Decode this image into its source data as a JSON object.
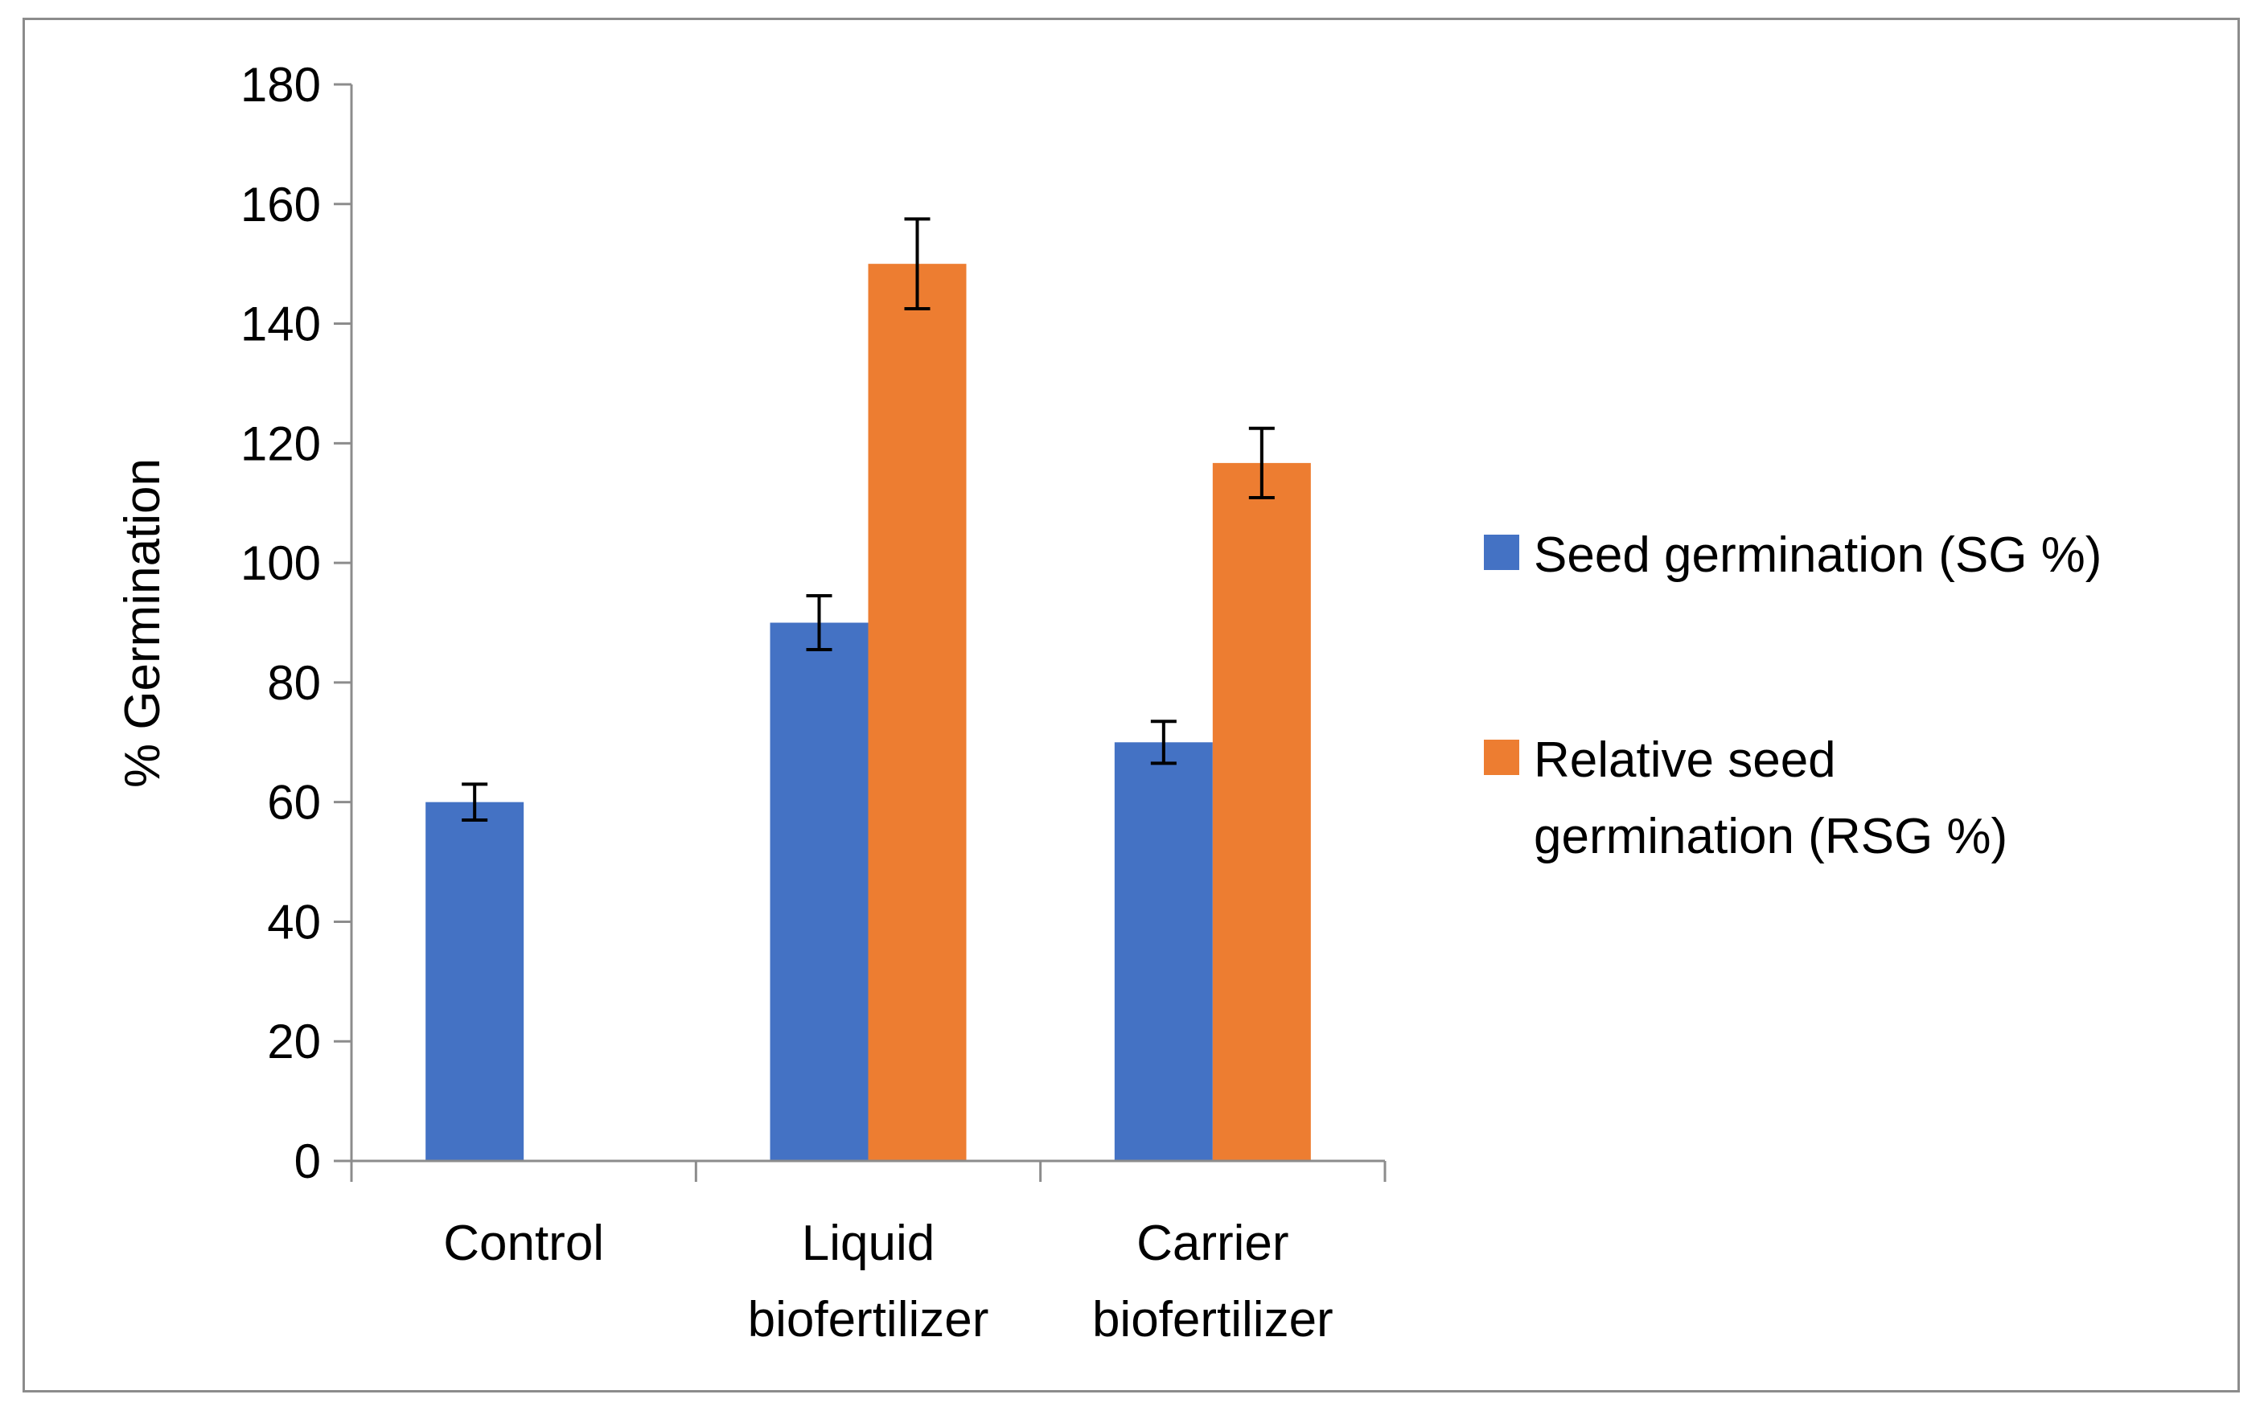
{
  "chart_data": {
    "type": "bar",
    "title": "",
    "xlabel": "",
    "ylabel": "% Germination",
    "ylim": [
      0,
      180
    ],
    "yticks": [
      0,
      20,
      40,
      60,
      80,
      100,
      120,
      140,
      160,
      180
    ],
    "grid": false,
    "legend_position": "right",
    "categories": [
      [
        "Control"
      ],
      [
        "Liquid",
        "biofertilizer"
      ],
      [
        "Carrier",
        "biofertilizer"
      ]
    ],
    "series": [
      {
        "name": "Seed germination  (SG %)",
        "legend_lines": [
          "Seed germination  (SG %)"
        ],
        "color": "#4472c4",
        "values": [
          60,
          90,
          70
        ],
        "errors": [
          3,
          4.5,
          3.5
        ]
      },
      {
        "name": "Relative seed germination  (RSG %)",
        "legend_lines": [
          "Relative seed",
          "germination  (RSG %)"
        ],
        "color": "#ed7d31",
        "values": [
          null,
          150,
          116.7
        ],
        "errors": [
          null,
          7.5,
          5.8
        ]
      }
    ]
  }
}
